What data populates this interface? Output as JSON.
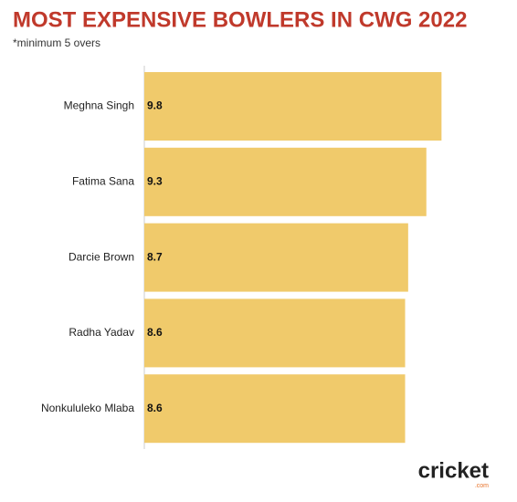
{
  "chart_data": {
    "type": "bar",
    "orientation": "horizontal",
    "title": "MOST EXPENSIVE BOWLERS IN CWG 2022",
    "subtitle": "*minimum 5 overs",
    "categories": [
      "Meghna Singh",
      "Fatima Sana",
      "Darcie Brown",
      "Radha Yadav",
      "Nonkululeko Mlaba"
    ],
    "values": [
      9.8,
      9.3,
      8.7,
      8.6,
      8.6
    ],
    "color": "#f0ca6b",
    "title_color": "#c0392b",
    "logo": {
      "text": "cricket",
      "suffix": ".com"
    }
  }
}
